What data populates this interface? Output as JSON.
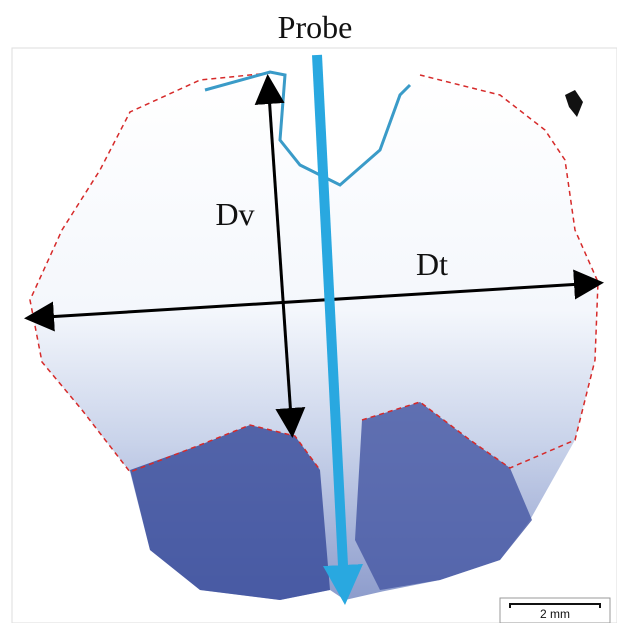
{
  "labels": {
    "probe": "Probe",
    "dv": "Dv",
    "dt": "Dt"
  },
  "scale_bar": "2 mm"
}
